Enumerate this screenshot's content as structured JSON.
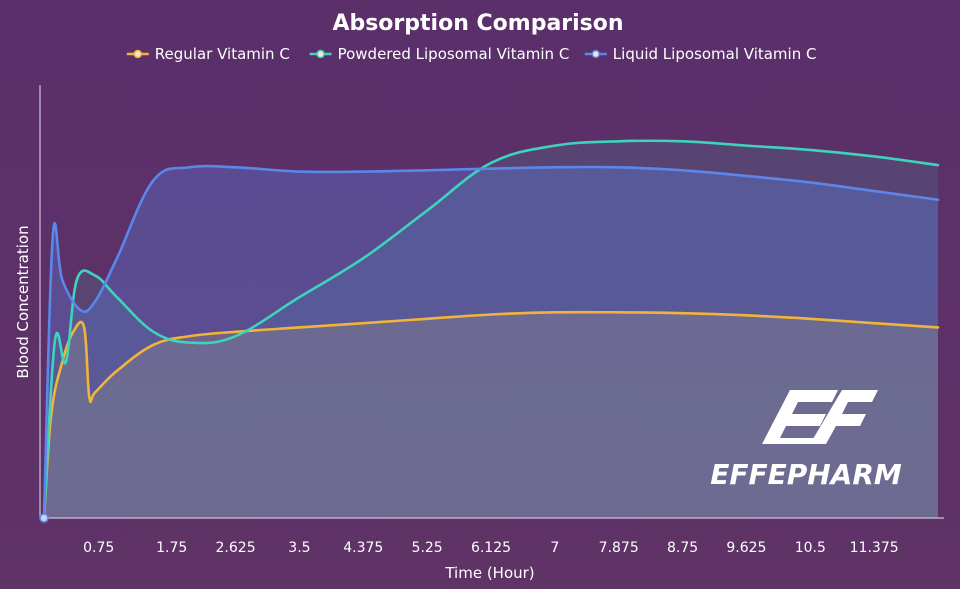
{
  "chart_data": {
    "type": "line",
    "title": "Absorption Comparison",
    "xlabel": "Time (Hour)",
    "ylabel": "Blood Concentration",
    "xlim": [
      0,
      12.25
    ],
    "ylim": [
      0,
      100
    ],
    "x_ticks": [
      "0.75",
      "1.75",
      "2.625",
      "3.5",
      "4.375",
      "5.25",
      "6.125",
      "7",
      "7.875",
      "8.75",
      "9.625",
      "10.5",
      "11.375"
    ],
    "grid": false,
    "legend_position": "top",
    "series": [
      {
        "name": "Regular Vitamin C",
        "color": "#f0b43a",
        "points": [
          [
            0,
            0
          ],
          [
            0.1,
            24
          ],
          [
            0.25,
            36
          ],
          [
            0.4,
            43
          ],
          [
            0.55,
            44
          ],
          [
            0.62,
            28
          ],
          [
            0.7,
            29
          ],
          [
            1.0,
            34
          ],
          [
            1.5,
            40
          ],
          [
            2.0,
            42
          ],
          [
            2.625,
            43
          ],
          [
            3.5,
            44
          ],
          [
            4.375,
            45
          ],
          [
            5.25,
            46
          ],
          [
            6.125,
            47
          ],
          [
            7,
            47.5
          ],
          [
            7.875,
            47.5
          ],
          [
            8.75,
            47.3
          ],
          [
            9.625,
            46.8
          ],
          [
            10.5,
            46
          ],
          [
            11.375,
            45
          ],
          [
            12.25,
            44
          ]
        ]
      },
      {
        "name": "Powdered Liposomal Vitamin C",
        "color": "#3ed3bc",
        "points": [
          [
            0,
            0
          ],
          [
            0.15,
            41
          ],
          [
            0.3,
            36
          ],
          [
            0.45,
            55
          ],
          [
            0.7,
            56
          ],
          [
            1.0,
            51
          ],
          [
            1.5,
            43
          ],
          [
            2.0,
            40.5
          ],
          [
            2.625,
            42
          ],
          [
            3.5,
            51
          ],
          [
            4.375,
            60
          ],
          [
            5.25,
            71
          ],
          [
            6.125,
            82
          ],
          [
            7,
            86
          ],
          [
            7.875,
            87
          ],
          [
            8.75,
            87
          ],
          [
            9.625,
            86
          ],
          [
            10.5,
            85
          ],
          [
            11.375,
            83.5
          ],
          [
            12.25,
            81.5
          ]
        ]
      },
      {
        "name": "Liquid Liposomal Vitamin C",
        "color": "#5b86ea",
        "points": [
          [
            0,
            0
          ],
          [
            0.12,
            65
          ],
          [
            0.25,
            55
          ],
          [
            0.5,
            48
          ],
          [
            0.7,
            50
          ],
          [
            1.0,
            60
          ],
          [
            1.5,
            78
          ],
          [
            2.0,
            81
          ],
          [
            2.625,
            81
          ],
          [
            3.5,
            80
          ],
          [
            4.375,
            80
          ],
          [
            5.25,
            80.3
          ],
          [
            6.125,
            80.7
          ],
          [
            7,
            81
          ],
          [
            7.875,
            81
          ],
          [
            8.75,
            80.3
          ],
          [
            9.625,
            79
          ],
          [
            10.5,
            77.5
          ],
          [
            11.375,
            75.5
          ],
          [
            12.25,
            73.5
          ]
        ]
      }
    ]
  },
  "watermark": {
    "brand": "EFFEPHARM"
  }
}
